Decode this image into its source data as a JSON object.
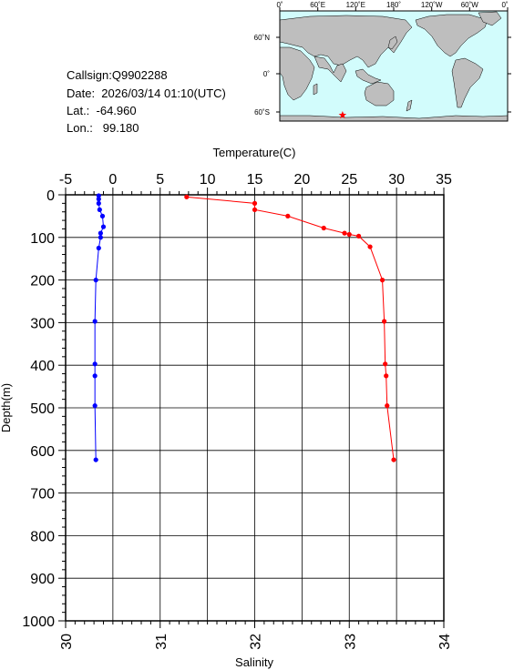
{
  "station": {
    "callsign_line": "Callsign:Q9902288",
    "date_line": "Date:  2026/03/14 01:10(UTC)",
    "lat_line": "Lat.:  -64.960",
    "lon_line": "Lon.:   99.180"
  },
  "map": {
    "top_lon_labels": [
      "0˚",
      "60˚E",
      "120˚E",
      "180˚",
      "120˚W",
      "60˚W",
      "0˚"
    ],
    "right_lat_labels": [
      "60˚N",
      "0˚",
      "60˚S"
    ],
    "marker_lon": 99.18,
    "marker_lat": -64.96,
    "ocean_color": "#d2fcfc",
    "land_color": "#bebebe",
    "marker_color": "#ff0000"
  },
  "chart_data": {
    "type": "line",
    "top_axis_label": "Temperature(C)",
    "bottom_axis_label": "Salinity",
    "y_axis_label": "Depth(m)",
    "temperature_range": [
      -5,
      35
    ],
    "temperature_ticks": [
      "-5",
      "0",
      "5",
      "10",
      "15",
      "20",
      "25",
      "30",
      "35"
    ],
    "salinity_range": [
      30,
      34
    ],
    "salinity_ticks": [
      "30",
      "31",
      "32",
      "33",
      "34"
    ],
    "depth_range": [
      0,
      1000
    ],
    "depth_ticks": [
      "0",
      "100",
      "200",
      "300",
      "400",
      "500",
      "600",
      "700",
      "800",
      "900",
      "1000"
    ],
    "grid": true,
    "series": [
      {
        "color": "#0000ff",
        "axis": "temperature",
        "points": [
          {
            "depth": 2,
            "value": -1.5
          },
          {
            "depth": 10,
            "value": -1.5
          },
          {
            "depth": 20,
            "value": -1.5
          },
          {
            "depth": 35,
            "value": -1.4
          },
          {
            "depth": 50,
            "value": -1.1
          },
          {
            "depth": 75,
            "value": -1.0
          },
          {
            "depth": 90,
            "value": -1.3
          },
          {
            "depth": 100,
            "value": -1.3
          },
          {
            "depth": 125,
            "value": -1.5
          },
          {
            "depth": 200,
            "value": -1.8
          },
          {
            "depth": 297,
            "value": -1.9
          },
          {
            "depth": 397,
            "value": -1.9
          },
          {
            "depth": 425,
            "value": -1.9
          },
          {
            "depth": 495,
            "value": -1.9
          },
          {
            "depth": 622,
            "value": -1.8
          }
        ]
      },
      {
        "color": "#ff0000",
        "axis": "salinity",
        "points": [
          {
            "depth": 5,
            "value": 31.28
          },
          {
            "depth": 20,
            "value": 32.0
          },
          {
            "depth": 35,
            "value": 32.0
          },
          {
            "depth": 50,
            "value": 32.35
          },
          {
            "depth": 78,
            "value": 32.73
          },
          {
            "depth": 90,
            "value": 32.95
          },
          {
            "depth": 93,
            "value": 33.0
          },
          {
            "depth": 97,
            "value": 33.1
          },
          {
            "depth": 122,
            "value": 33.22
          },
          {
            "depth": 200,
            "value": 33.35
          },
          {
            "depth": 297,
            "value": 33.37
          },
          {
            "depth": 397,
            "value": 33.38
          },
          {
            "depth": 425,
            "value": 33.39
          },
          {
            "depth": 495,
            "value": 33.4
          },
          {
            "depth": 622,
            "value": 33.47
          }
        ]
      }
    ]
  }
}
